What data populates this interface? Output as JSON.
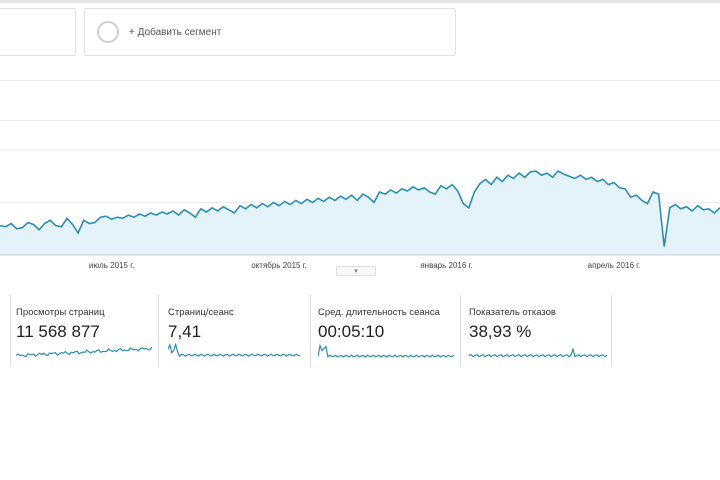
{
  "segments": {
    "add_label": "+ Добавить сегмент"
  },
  "expander": {
    "icon": "chevron-down-icon",
    "glyph": "▾"
  },
  "chart_data": {
    "type": "area",
    "series": [
      {
        "values": [
          28,
          27,
          30,
          25,
          26,
          31,
          29,
          24,
          30,
          33,
          28,
          27,
          35,
          29,
          21,
          33,
          30,
          31,
          36,
          37,
          34,
          36,
          35,
          38,
          36,
          39,
          37,
          40,
          38,
          41,
          39,
          42,
          38,
          43,
          40,
          36,
          44,
          41,
          45,
          42,
          46,
          43,
          40,
          47,
          44,
          48,
          45,
          49,
          46,
          50,
          47,
          51,
          48,
          52,
          49,
          53,
          50,
          54,
          51,
          55,
          52,
          56,
          53,
          57,
          52,
          58,
          55,
          50,
          60,
          58,
          62,
          59,
          63,
          61,
          65,
          62,
          64,
          60,
          58,
          66,
          63,
          67,
          61,
          49,
          45,
          60,
          68,
          72,
          67,
          74,
          70,
          76,
          73,
          78,
          74,
          79,
          80,
          76,
          78,
          74,
          80,
          77,
          75,
          73,
          76,
          72,
          74,
          70,
          72,
          67,
          69,
          64,
          63,
          55,
          57,
          52,
          49,
          60,
          58,
          8,
          45,
          48,
          44,
          46,
          42,
          47,
          43,
          44,
          40,
          45
        ]
      }
    ],
    "x_tick_labels": [
      "июль 2015 г.",
      "октябрь 2015 г.",
      "январь 2016 г.",
      "апрель 2016 г."
    ],
    "x_tick_index": [
      20,
      50,
      80,
      110
    ],
    "ylim": [
      0,
      100
    ],
    "grid": true,
    "legend": "none"
  },
  "metrics": [
    {
      "label": "Просмотры страниц",
      "value": "11 568 877"
    },
    {
      "label": "Страниц/сеанс",
      "value": "7,41"
    },
    {
      "label": "Сред. длительность сеанса",
      "value": "00:05:10"
    },
    {
      "label": "Показатель отказов",
      "value": "38,93 %"
    }
  ],
  "colors": {
    "line": "#2a8fb5",
    "fill": "#e4f2f9",
    "spark": "#2a8fb5",
    "grid": "#ececec"
  }
}
